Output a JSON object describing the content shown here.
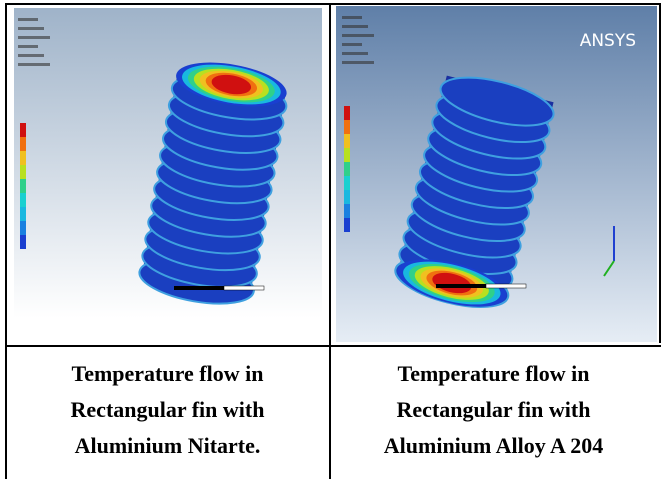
{
  "cells": [
    {
      "caption": [
        "Temperature flow in",
        "Rectangular fin with",
        "Aluminium Nitarte."
      ]
    },
    {
      "caption": [
        "Temperature flow in",
        "Rectangular fin with",
        "Aluminium Alloy A 204"
      ],
      "logo": "ANSYS"
    }
  ]
}
